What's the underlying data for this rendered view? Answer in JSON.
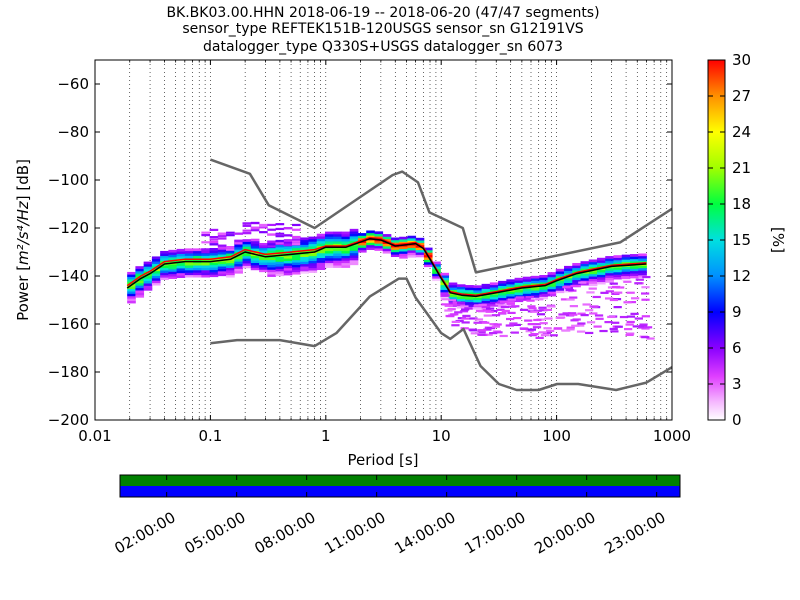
{
  "title_lines": [
    "BK.BK03.00.HHN   2018-06-19 -- 2018-06-20  (47/47 segments)",
    "sensor_type REFTEK151B-120USGS sensor_sn G12191VS",
    "datalogger_type Q330S+USGS datalogger_sn 6073"
  ],
  "chart_data": {
    "type": "heatmap",
    "x_scale": "log",
    "xlabel": "Period [s]",
    "ylabel_prefix": "Power [",
    "ylabel_units": "m²/s⁴/Hz",
    "ylabel_suffix": "] [dB]",
    "xlim": [
      0.01,
      1000
    ],
    "ylim": [
      -200,
      -50
    ],
    "x_ticks": [
      {
        "value": 0.01,
        "label": "0.01"
      },
      {
        "value": 0.1,
        "label": "0.1"
      },
      {
        "value": 1,
        "label": "1"
      },
      {
        "value": 10,
        "label": "10"
      },
      {
        "value": 100,
        "label": "100"
      },
      {
        "value": 1000,
        "label": "1000"
      }
    ],
    "y_ticks": [
      {
        "value": -60,
        "label": "−60"
      },
      {
        "value": -80,
        "label": "−80"
      },
      {
        "value": -100,
        "label": "−100"
      },
      {
        "value": -120,
        "label": "−120"
      },
      {
        "value": -140,
        "label": "−140"
      },
      {
        "value": -160,
        "label": "−160"
      },
      {
        "value": -180,
        "label": "−180"
      },
      {
        "value": -200,
        "label": "−200"
      }
    ],
    "grid": "dotted vertical",
    "colorbar": {
      "label": "[%]",
      "range": [
        0,
        30
      ],
      "ticks": [
        {
          "value": 0,
          "label": "0"
        },
        {
          "value": 3,
          "label": "3"
        },
        {
          "value": 6,
          "label": "6"
        },
        {
          "value": 9,
          "label": "9"
        },
        {
          "value": 12,
          "label": "12"
        },
        {
          "value": 15,
          "label": "15"
        },
        {
          "value": 18,
          "label": "18"
        },
        {
          "value": 21,
          "label": "21"
        },
        {
          "value": 24,
          "label": "24"
        },
        {
          "value": 27,
          "label": "27"
        },
        {
          "value": 30,
          "label": "30"
        }
      ]
    },
    "nhnm": {
      "name": "New High Noise Model",
      "color": "#666666",
      "points": [
        [
          0.1,
          -91.5
        ],
        [
          0.22,
          -97.4
        ],
        [
          0.32,
          -110.5
        ],
        [
          0.8,
          -120
        ],
        [
          3.8,
          -97.9
        ],
        [
          4.6,
          -96.5
        ],
        [
          6.3,
          -101
        ],
        [
          7.9,
          -113.5
        ],
        [
          15.4,
          -120
        ],
        [
          20,
          -138.5
        ],
        [
          354.8,
          -126
        ],
        [
          1000,
          -112
        ]
      ]
    },
    "nlnm": {
      "name": "New Low Noise Model",
      "color": "#666666",
      "points": [
        [
          0.1,
          -168
        ],
        [
          0.17,
          -166.7
        ],
        [
          0.4,
          -166.7
        ],
        [
          0.8,
          -169.2
        ],
        [
          1.24,
          -163.7
        ],
        [
          2.4,
          -148.6
        ],
        [
          4.3,
          -141.1
        ],
        [
          5,
          -141.1
        ],
        [
          6,
          -149
        ],
        [
          10,
          -163.8
        ],
        [
          12,
          -166.2
        ],
        [
          15.6,
          -162.1
        ],
        [
          21.9,
          -177.5
        ],
        [
          31.6,
          -185
        ],
        [
          45,
          -187.5
        ],
        [
          70,
          -187.5
        ],
        [
          101,
          -185
        ],
        [
          154,
          -185
        ],
        [
          328,
          -187.5
        ],
        [
          600,
          -184.4
        ],
        [
          1000,
          -178
        ]
      ]
    },
    "median_line": {
      "color": "#000000",
      "points": [
        [
          0.019,
          -145
        ],
        [
          0.025,
          -141
        ],
        [
          0.03,
          -139
        ],
        [
          0.04,
          -135
        ],
        [
          0.06,
          -134
        ],
        [
          0.1,
          -134
        ],
        [
          0.15,
          -133
        ],
        [
          0.2,
          -130
        ],
        [
          0.3,
          -132
        ],
        [
          0.5,
          -131
        ],
        [
          0.8,
          -130
        ],
        [
          1,
          -128
        ],
        [
          1.5,
          -128
        ],
        [
          2.4,
          -124.5
        ],
        [
          3,
          -125
        ],
        [
          4,
          -127.5
        ],
        [
          5,
          -127
        ],
        [
          6,
          -126.5
        ],
        [
          7,
          -128.5
        ],
        [
          8,
          -133
        ],
        [
          10,
          -141
        ],
        [
          12,
          -147
        ],
        [
          15,
          -148
        ],
        [
          20,
          -148.5
        ],
        [
          30,
          -147
        ],
        [
          50,
          -145
        ],
        [
          80,
          -144
        ],
        [
          100,
          -142
        ],
        [
          150,
          -139
        ],
        [
          300,
          -136
        ],
        [
          600,
          -135
        ]
      ]
    },
    "mode_line": {
      "color": "#ff0000",
      "points": [
        [
          0.019,
          -144
        ],
        [
          0.025,
          -140
        ],
        [
          0.03,
          -138
        ],
        [
          0.04,
          -134
        ],
        [
          0.06,
          -133
        ],
        [
          0.1,
          -133
        ],
        [
          0.15,
          -132
        ],
        [
          0.2,
          -129
        ],
        [
          0.3,
          -131
        ],
        [
          0.5,
          -130
        ],
        [
          0.8,
          -129
        ],
        [
          1,
          -127.5
        ],
        [
          1.5,
          -127.5
        ],
        [
          2.4,
          -124
        ],
        [
          3,
          -124.5
        ],
        [
          4,
          -127
        ],
        [
          5,
          -126.5
        ],
        [
          6,
          -126
        ],
        [
          7,
          -128
        ],
        [
          8,
          -132.5
        ],
        [
          10,
          -140.5
        ],
        [
          12,
          -146.5
        ],
        [
          15,
          -147.5
        ],
        [
          20,
          -148
        ],
        [
          30,
          -146.5
        ],
        [
          50,
          -144.5
        ],
        [
          80,
          -143.5
        ],
        [
          100,
          -141.5
        ],
        [
          150,
          -138.5
        ],
        [
          300,
          -135.5
        ],
        [
          600,
          -134.5
        ]
      ]
    },
    "density_band": {
      "period_range": [
        0.019,
        600
      ],
      "bins_per_decade": 14,
      "db_step": 1
    },
    "scatter_tail": {
      "period_range": [
        10,
        600
      ],
      "db_range": [
        -172,
        -140
      ]
    }
  },
  "timeline": {
    "labels": [
      "02:00:00",
      "05:00:00",
      "08:00:00",
      "11:00:00",
      "14:00:00",
      "17:00:00",
      "20:00:00",
      "23:00:00"
    ],
    "top_color": "#008000",
    "bottom_color": "#0000ff"
  }
}
